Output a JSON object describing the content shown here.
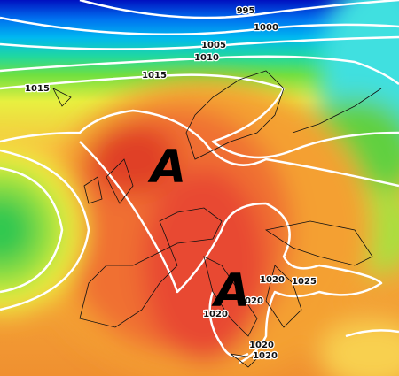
{
  "map": {
    "isobar_labels": [
      "995",
      "1000",
      "1005",
      "1010",
      "1015",
      "1015",
      "1020",
      "1025",
      "1020",
      "1020",
      "1020",
      "1020"
    ],
    "pressure_centers": [
      "A",
      "A"
    ]
  }
}
